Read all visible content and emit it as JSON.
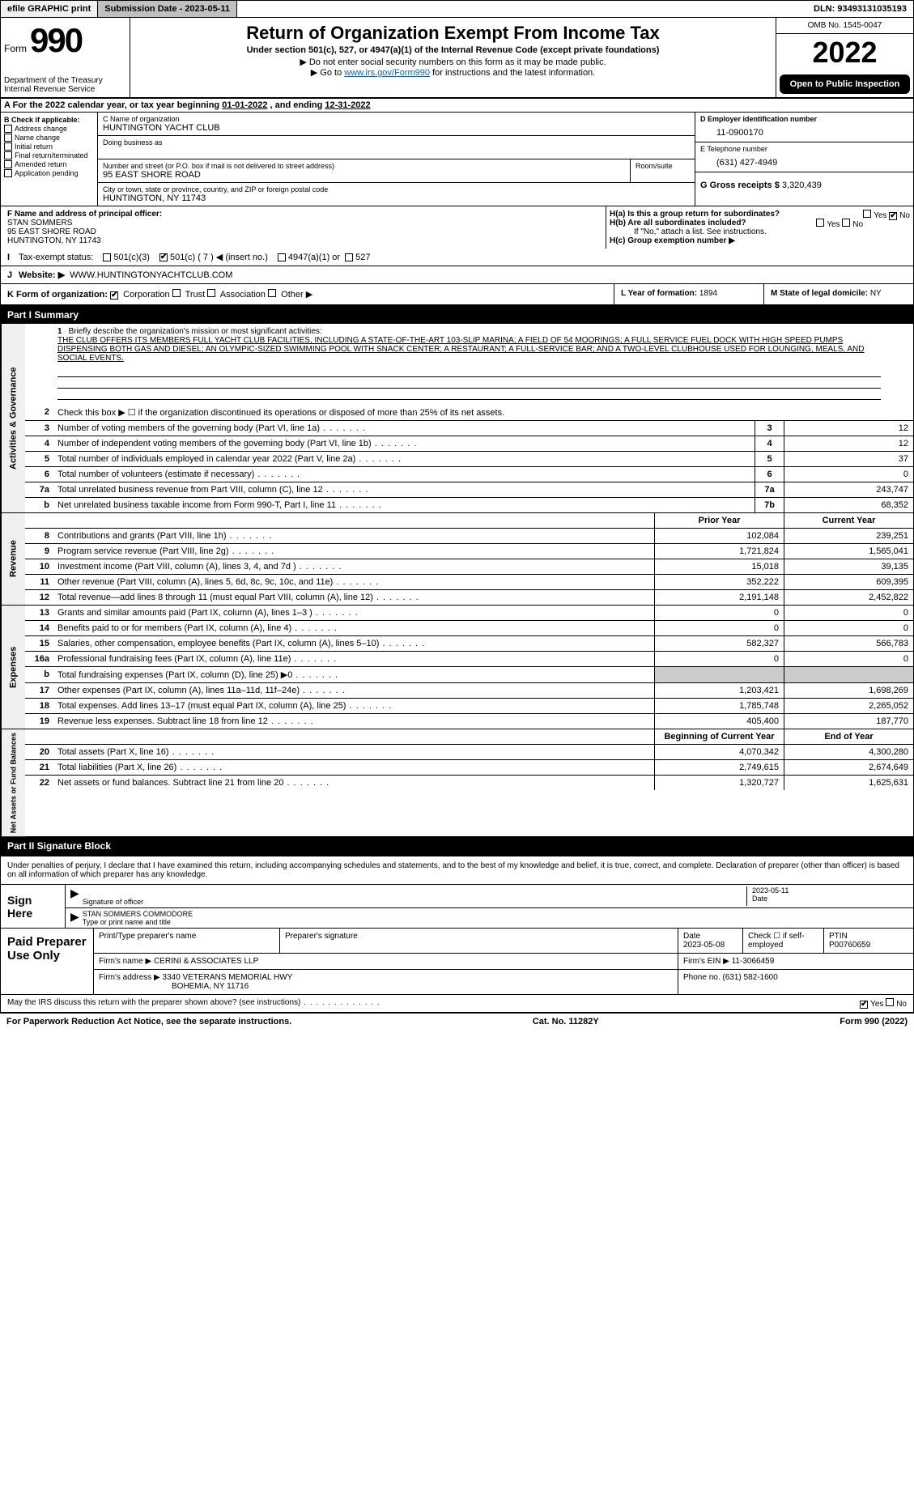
{
  "top": {
    "efile": "efile GRAPHIC print",
    "submission": "Submission Date - 2023-05-11",
    "dln": "DLN: 93493131035193"
  },
  "header": {
    "form_word": "Form",
    "form_num": "990",
    "title": "Return of Organization Exempt From Income Tax",
    "sub": "Under section 501(c), 527, or 4947(a)(1) of the Internal Revenue Code (except private foundations)",
    "sub2": "▶ Do not enter social security numbers on this form as it may be made public.",
    "sub3_pre": "▶ Go to ",
    "sub3_link": "www.irs.gov/Form990",
    "sub3_post": " for instructions and the latest information.",
    "dept": "Department of the Treasury",
    "irs": "Internal Revenue Service",
    "omb": "OMB No. 1545-0047",
    "year": "2022",
    "open": "Open to Public Inspection"
  },
  "period": {
    "text_a": "A For the 2022 calendar year, or tax year beginning ",
    "begin": "01-01-2022",
    "text_b": " , and ending ",
    "end": "12-31-2022"
  },
  "checkB": {
    "title": "B Check if applicable:",
    "items": [
      "Address change",
      "Name change",
      "Initial return",
      "Final return/terminated",
      "Amended return",
      "Application pending"
    ]
  },
  "org": {
    "name_lbl": "C Name of organization",
    "name": "HUNTINGTON YACHT CLUB",
    "dba_lbl": "Doing business as",
    "dba": "",
    "addr_lbl": "Number and street (or P.O. box if mail is not delivered to street address)",
    "room_lbl": "Room/suite",
    "addr": "95 EAST SHORE ROAD",
    "city_lbl": "City or town, state or province, country, and ZIP or foreign postal code",
    "city": "HUNTINGTON, NY  11743"
  },
  "right": {
    "ein_lbl": "D Employer identification number",
    "ein": "11-0900170",
    "tel_lbl": "E Telephone number",
    "tel": "(631) 427-4949",
    "gross_lbl": "G Gross receipts $",
    "gross": "3,320,439"
  },
  "officer": {
    "lbl": "F  Name and address of principal officer:",
    "name": "STAN SOMMERS",
    "addr1": "95 EAST SHORE ROAD",
    "addr2": "HUNTINGTON, NY  11743"
  },
  "h": {
    "a_lbl": "H(a)  Is this a group return for subordinates?",
    "b_lbl": "H(b)  Are all subordinates included?",
    "b_note": "If \"No,\" attach a list. See instructions.",
    "c_lbl": "H(c)  Group exemption number ▶",
    "yes": "Yes",
    "no": "No"
  },
  "status": {
    "lbl": "Tax-exempt status:",
    "c3": "501(c)(3)",
    "c": "501(c) ( 7 ) ◀ (insert no.)",
    "a1": "4947(a)(1) or",
    "s527": "527"
  },
  "website": {
    "lbl_j": "J",
    "lbl": "Website: ▶",
    "val": "WWW.HUNTINGTONYACHTCLUB.COM"
  },
  "k": {
    "lbl": "K Form of organization:",
    "corp": "Corporation",
    "trust": "Trust",
    "assoc": "Association",
    "other": "Other ▶"
  },
  "l": {
    "lbl": "L Year of formation:",
    "val": "1894"
  },
  "m": {
    "lbl": "M State of legal domicile:",
    "val": "NY"
  },
  "part1": {
    "bar": "Part I      Summary"
  },
  "mission": {
    "num": "1",
    "lbl": "Briefly describe the organization's mission or most significant activities:",
    "text": "THE CLUB OFFERS ITS MEMBERS FULL YACHT CLUB FACILITIES, INCLUDING A STATE-OF-THE-ART 103-SLIP MARINA; A FIELD OF 54 MOORINGS; A FULL SERVICE FUEL DOCK WITH HIGH SPEED PUMPS DISPENSING BOTH GAS AND DIESEL; AN OLYMPIC-SIZED SWIMMING POOL WITH SNACK CENTER; A RESTAURANT; A FULL-SERVICE BAR; AND A TWO-LEVEL CLUBHOUSE USED FOR LOUNGING, MEALS, AND SOCIAL EVENTS."
  },
  "lines_gov": [
    {
      "n": "2",
      "t": "Check this box ▶ ☐  if the organization discontinued its operations or disposed of more than 25% of its net assets.",
      "box": "",
      "v": ""
    },
    {
      "n": "3",
      "t": "Number of voting members of the governing body (Part VI, line 1a)",
      "box": "3",
      "v": "12"
    },
    {
      "n": "4",
      "t": "Number of independent voting members of the governing body (Part VI, line 1b)",
      "box": "4",
      "v": "12"
    },
    {
      "n": "5",
      "t": "Total number of individuals employed in calendar year 2022 (Part V, line 2a)",
      "box": "5",
      "v": "37"
    },
    {
      "n": "6",
      "t": "Total number of volunteers (estimate if necessary)",
      "box": "6",
      "v": "0"
    },
    {
      "n": "7a",
      "t": "Total unrelated business revenue from Part VIII, column (C), line 12",
      "box": "7a",
      "v": "243,747"
    },
    {
      "n": "b",
      "t": "Net unrelated business taxable income from Form 990-T, Part I, line 11",
      "box": "7b",
      "v": "68,352"
    }
  ],
  "col_headers": {
    "prior": "Prior Year",
    "current": "Current Year"
  },
  "lines_rev": [
    {
      "n": "8",
      "t": "Contributions and grants (Part VIII, line 1h)",
      "p": "102,084",
      "c": "239,251"
    },
    {
      "n": "9",
      "t": "Program service revenue (Part VIII, line 2g)",
      "p": "1,721,824",
      "c": "1,565,041"
    },
    {
      "n": "10",
      "t": "Investment income (Part VIII, column (A), lines 3, 4, and 7d )",
      "p": "15,018",
      "c": "39,135"
    },
    {
      "n": "11",
      "t": "Other revenue (Part VIII, column (A), lines 5, 6d, 8c, 9c, 10c, and 11e)",
      "p": "352,222",
      "c": "609,395"
    },
    {
      "n": "12",
      "t": "Total revenue—add lines 8 through 11 (must equal Part VIII, column (A), line 12)",
      "p": "2,191,148",
      "c": "2,452,822"
    }
  ],
  "lines_exp": [
    {
      "n": "13",
      "t": "Grants and similar amounts paid (Part IX, column (A), lines 1–3 )",
      "p": "0",
      "c": "0"
    },
    {
      "n": "14",
      "t": "Benefits paid to or for members (Part IX, column (A), line 4)",
      "p": "0",
      "c": "0"
    },
    {
      "n": "15",
      "t": "Salaries, other compensation, employee benefits (Part IX, column (A), lines 5–10)",
      "p": "582,327",
      "c": "566,783"
    },
    {
      "n": "16a",
      "t": "Professional fundraising fees (Part IX, column (A), line 11e)",
      "p": "0",
      "c": "0"
    },
    {
      "n": "b",
      "t": "Total fundraising expenses (Part IX, column (D), line 25) ▶0",
      "p": "",
      "c": ""
    },
    {
      "n": "17",
      "t": "Other expenses (Part IX, column (A), lines 11a–11d, 11f–24e)",
      "p": "1,203,421",
      "c": "1,698,269"
    },
    {
      "n": "18",
      "t": "Total expenses. Add lines 13–17 (must equal Part IX, column (A), line 25)",
      "p": "1,785,748",
      "c": "2,265,052"
    },
    {
      "n": "19",
      "t": "Revenue less expenses. Subtract line 18 from line 12",
      "p": "405,400",
      "c": "187,770"
    }
  ],
  "net_headers": {
    "begin": "Beginning of Current Year",
    "end": "End of Year"
  },
  "lines_net": [
    {
      "n": "20",
      "t": "Total assets (Part X, line 16)",
      "p": "4,070,342",
      "c": "4,300,280"
    },
    {
      "n": "21",
      "t": "Total liabilities (Part X, line 26)",
      "p": "2,749,615",
      "c": "2,674,649"
    },
    {
      "n": "22",
      "t": "Net assets or fund balances. Subtract line 21 from line 20",
      "p": "1,320,727",
      "c": "1,625,631"
    }
  ],
  "part2": {
    "bar": "Part II      Signature Block"
  },
  "sig": {
    "intro": "Under penalties of perjury, I declare that I have examined this return, including accompanying schedules and statements, and to the best of my knowledge and belief, it is true, correct, and complete. Declaration of preparer (other than officer) is based on all information of which preparer has any knowledge.",
    "sign_here": "Sign Here",
    "sig_officer": "Signature of officer",
    "date": "Date",
    "date_val": "2023-05-11",
    "typed": "STAN SOMMERS  COMMODORE",
    "typed_lbl": "Type or print name and title"
  },
  "prep": {
    "title": "Paid Preparer Use Only",
    "print_lbl": "Print/Type preparer's name",
    "sig_lbl": "Preparer's signature",
    "date_lbl": "Date",
    "date_val": "2023-05-08",
    "check_lbl": "Check ☐ if self-employed",
    "ptin_lbl": "PTIN",
    "ptin": "P00760659",
    "firm_name_lbl": "Firm's name      ▶",
    "firm_name": "CERINI & ASSOCIATES LLP",
    "firm_ein_lbl": "Firm's EIN ▶",
    "firm_ein": "11-3066459",
    "firm_addr_lbl": "Firm's address ▶",
    "firm_addr1": "3340 VETERANS MEMORIAL HWY",
    "firm_addr2": "BOHEMIA, NY  11716",
    "phone_lbl": "Phone no.",
    "phone": "(631) 582-1600"
  },
  "discuss": {
    "text": "May the IRS discuss this return with the preparer shown above? (see instructions)",
    "yes": "Yes",
    "no": "No"
  },
  "footer": {
    "left": "For Paperwork Reduction Act Notice, see the separate instructions.",
    "mid": "Cat. No. 11282Y",
    "right": "Form 990 (2022)"
  },
  "side": {
    "gov": "Activities & Governance",
    "rev": "Revenue",
    "exp": "Expenses",
    "net": "Net Assets or Fund Balances"
  }
}
